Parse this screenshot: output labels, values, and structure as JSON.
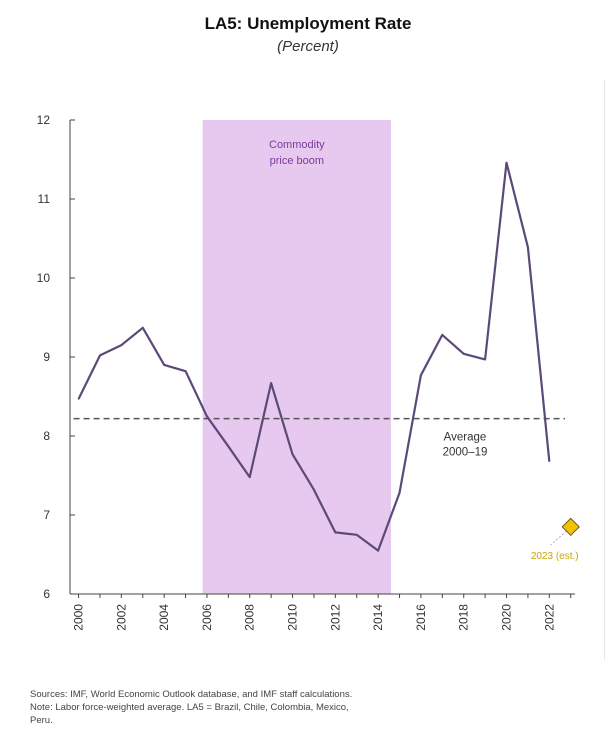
{
  "chart_data": {
    "type": "line",
    "title": "LA5: Unemployment Rate",
    "subtitle": "(Percent)",
    "xlabel": "",
    "ylabel": "",
    "xlim": [
      1999.6,
      2023.2
    ],
    "ylim": [
      6,
      12
    ],
    "yticks": [
      6,
      7,
      8,
      9,
      10,
      11,
      12
    ],
    "xticks": [
      2000,
      2002,
      2004,
      2006,
      2008,
      2010,
      2012,
      2014,
      2016,
      2018,
      2020,
      2022
    ],
    "grid": false,
    "series": [
      {
        "name": "",
        "color": "#5b4a78",
        "x": [
          2000,
          2001,
          2002,
          2003,
          2004,
          2005,
          2006,
          2007,
          2008,
          2009,
          2010,
          2011,
          2012,
          2013,
          2014,
          2015,
          2016,
          2017,
          2018,
          2019,
          2020,
          2021,
          2022
        ],
        "y": [
          8.47,
          9.02,
          9.15,
          9.37,
          8.9,
          8.82,
          8.25,
          7.87,
          7.48,
          8.67,
          7.77,
          7.32,
          6.78,
          6.75,
          6.55,
          7.28,
          8.77,
          9.28,
          9.04,
          8.97,
          11.46,
          10.39,
          7.68
        ]
      }
    ],
    "average_line": {
      "value": 8.22,
      "label_line1": "Average",
      "label_line2": "2000–19",
      "color": "#555555"
    },
    "shaded_region": {
      "x_start": 2005.8,
      "x_end": 2014.6,
      "label_line1": "Commodity",
      "label_line2": "price boom",
      "color": "#e7c9ef",
      "label_color": "#7a3a9a"
    },
    "estimate_point": {
      "x": 2023,
      "y": 6.85,
      "label": "2023 (est.)",
      "color": "#f2c200"
    }
  },
  "footer": {
    "sources": "Sources: IMF, World Economic Outlook database, and IMF staff calculations.",
    "note_line1": "Note: Labor force-weighted average. LA5 = Brazil, Chile, Colombia, Mexico,",
    "note_line2": "Peru."
  }
}
